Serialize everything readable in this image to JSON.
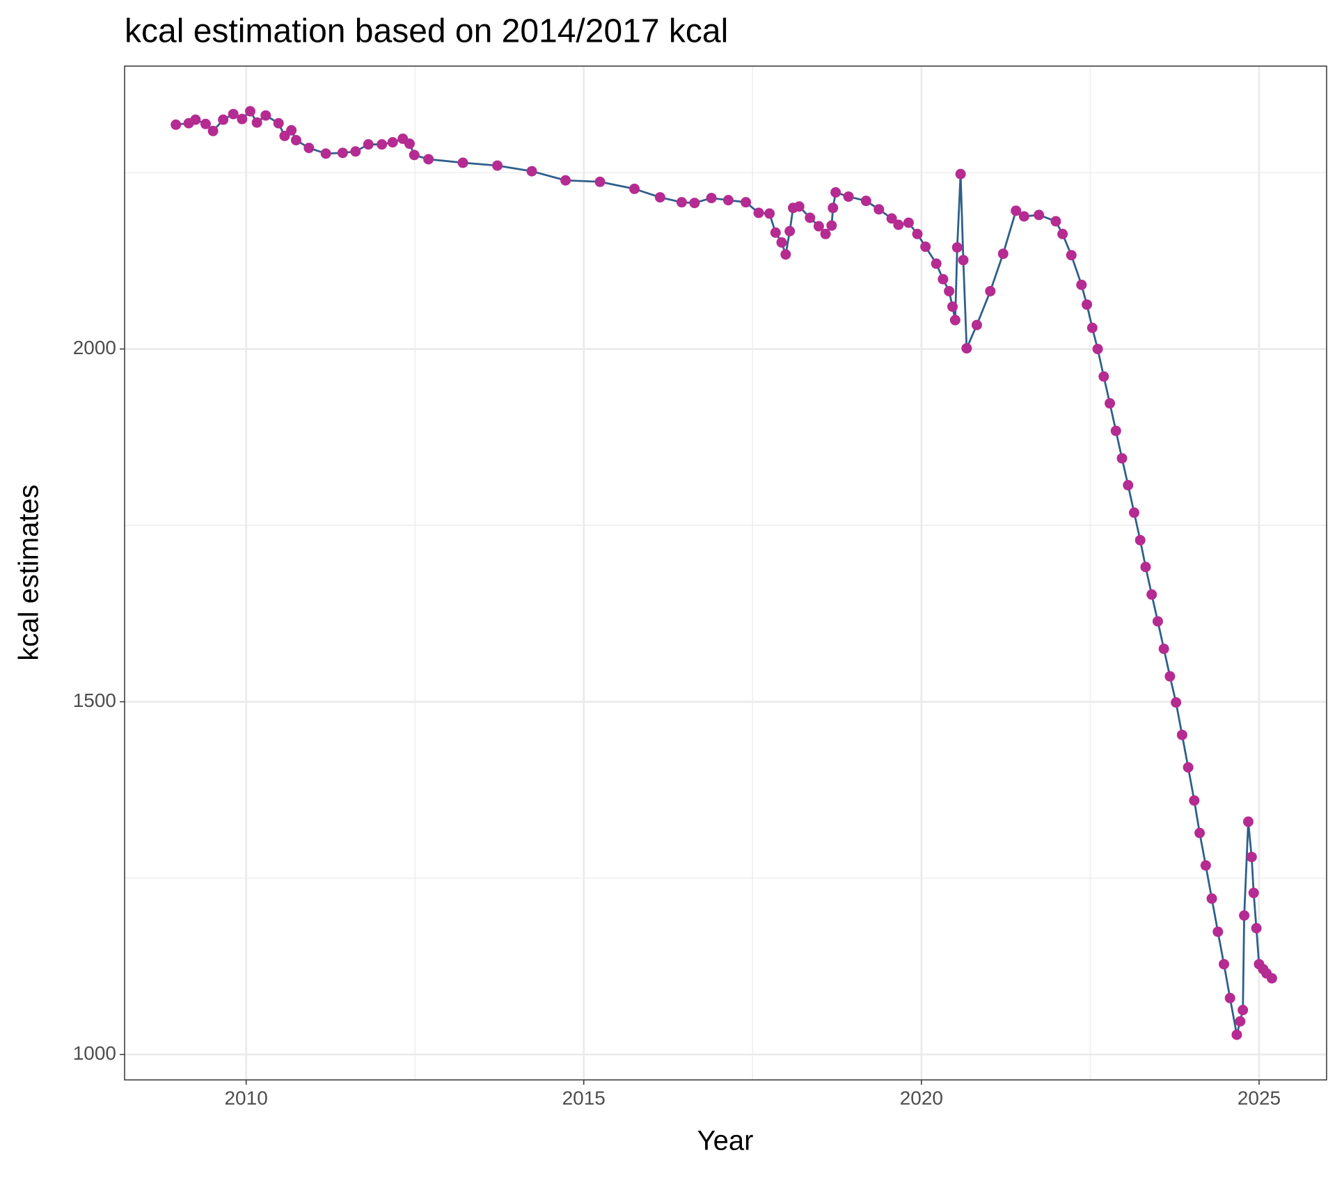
{
  "chart_data": {
    "type": "line",
    "title": "kcal estimation based on 2014/2017 kcal",
    "xlabel": "Year",
    "ylabel": "kcal estimates",
    "x": [
      2008.96,
      2009.15,
      2009.25,
      2009.4,
      2009.51,
      2009.66,
      2009.81,
      2009.94,
      2010.06,
      2010.16,
      2010.29,
      2010.48,
      2010.57,
      2010.67,
      2010.74,
      2010.93,
      2011.18,
      2011.43,
      2011.62,
      2011.81,
      2012.01,
      2012.17,
      2012.32,
      2012.42,
      2012.49,
      2012.7,
      2013.21,
      2013.72,
      2014.23,
      2014.73,
      2015.24,
      2015.75,
      2016.13,
      2016.45,
      2016.64,
      2016.89,
      2017.14,
      2017.4,
      2017.59,
      2017.75,
      2017.84,
      2017.93,
      2017.99,
      2018.05,
      2018.1,
      2018.19,
      2018.35,
      2018.48,
      2018.58,
      2018.67,
      2018.69,
      2018.73,
      2018.92,
      2019.18,
      2019.37,
      2019.56,
      2019.66,
      2019.81,
      2019.94,
      2020.06,
      2020.22,
      2020.32,
      2020.41,
      2020.46,
      2020.5,
      2020.53,
      2020.58,
      2020.62,
      2020.67,
      2020.82,
      2021.02,
      2021.21,
      2021.4,
      2021.52,
      2021.74,
      2021.99,
      2022.09,
      2022.22,
      2022.37,
      2022.45,
      2022.53,
      2022.61,
      2022.7,
      2022.79,
      2022.88,
      2022.97,
      2023.06,
      2023.15,
      2023.24,
      2023.32,
      2023.41,
      2023.5,
      2023.59,
      2023.68,
      2023.77,
      2023.86,
      2023.95,
      2024.04,
      2024.12,
      2024.21,
      2024.3,
      2024.39,
      2024.48,
      2024.57,
      2024.67,
      2024.72,
      2024.76,
      2024.78,
      2024.84,
      2024.89,
      2024.92,
      2024.96,
      2025.0,
      2025.06,
      2025.11,
      2025.19
    ],
    "values": [
      2318,
      2320,
      2325,
      2319,
      2309,
      2325,
      2333,
      2326,
      2337,
      2321,
      2331,
      2320,
      2302,
      2310,
      2296,
      2285,
      2277,
      2278,
      2280,
      2290,
      2290,
      2293,
      2298,
      2291,
      2275,
      2269,
      2264,
      2260,
      2252,
      2239,
      2237,
      2227,
      2215,
      2208,
      2207,
      2214,
      2211,
      2208,
      2193,
      2192,
      2165,
      2151,
      2134,
      2167,
      2200,
      2202,
      2186,
      2174,
      2163,
      2175,
      2200,
      2222,
      2216,
      2210,
      2198,
      2185,
      2176,
      2179,
      2163,
      2145,
      2121,
      2099,
      2082,
      2060,
      2041,
      2144,
      2248,
      2126,
      2001,
      2034,
      2082,
      2135,
      2196,
      2188,
      2190,
      2181,
      2163,
      2133,
      2091,
      2063,
      2030,
      2000,
      1961,
      1923,
      1884,
      1845,
      1807,
      1768,
      1729,
      1691,
      1652,
      1614,
      1575,
      1536,
      1499,
      1453,
      1407,
      1360,
      1314,
      1268,
      1221,
      1174,
      1128,
      1080,
      1028,
      1047,
      1063,
      1197,
      1330,
      1280,
      1229,
      1179,
      1128,
      1121,
      1115,
      1108
    ],
    "line_color": "#2e5f8a",
    "point_color": "#b52b91",
    "xlim": [
      2008.2,
      2026.0
    ],
    "xticks": [
      2010,
      2015,
      2020,
      2025
    ],
    "ylim": [
      964,
      2401
    ],
    "yticks": [
      1000,
      1500,
      2000
    ],
    "grid": true
  }
}
